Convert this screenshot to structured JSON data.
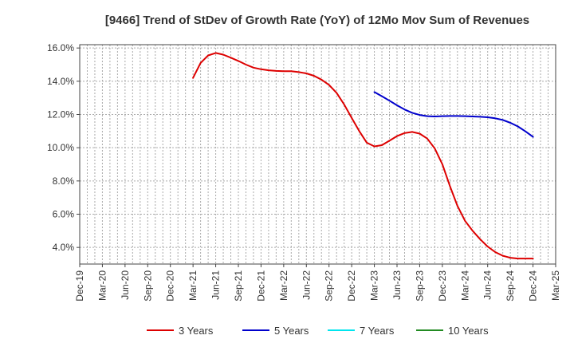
{
  "chart_data": {
    "type": "line",
    "title": "[9466]  Trend of StDev of Growth Rate (YoY) of 12Mo Mov Sum of Revenues",
    "xlabel": "",
    "ylabel": "",
    "x_ticks": [
      "Dec-19",
      "Mar-20",
      "Jun-20",
      "Sep-20",
      "Dec-20",
      "Mar-21",
      "Jun-21",
      "Sep-21",
      "Dec-21",
      "Mar-22",
      "Jun-22",
      "Sep-22",
      "Dec-22",
      "Mar-23",
      "Jun-23",
      "Sep-23",
      "Dec-23",
      "Mar-24",
      "Jun-24",
      "Sep-24",
      "Dec-24",
      "Mar-25"
    ],
    "y_ticks": [
      "4.0%",
      "6.0%",
      "8.0%",
      "10.0%",
      "12.0%",
      "14.0%",
      "16.0%"
    ],
    "y_tick_values": [
      4,
      6,
      8,
      10,
      12,
      14,
      16
    ],
    "ylim": [
      3.0,
      16.2
    ],
    "x_range_months": [
      0,
      63
    ],
    "grid": true,
    "legend_position": "bottom",
    "series": [
      {
        "name": "3 Years",
        "color": "#dd0000",
        "x_months": [
          15,
          16,
          17,
          18,
          19,
          20,
          21,
          22,
          23,
          24,
          25,
          26,
          27,
          28,
          29,
          30,
          31,
          32,
          33,
          34,
          35,
          36,
          37,
          38,
          39,
          40,
          41,
          42,
          43,
          44,
          45,
          46,
          47,
          48,
          49,
          50,
          51,
          52,
          53,
          54,
          55,
          56,
          57,
          58,
          59,
          60
        ],
        "values": [
          14.2,
          15.1,
          15.55,
          15.7,
          15.6,
          15.42,
          15.22,
          15.0,
          14.82,
          14.72,
          14.66,
          14.62,
          14.6,
          14.6,
          14.55,
          14.47,
          14.33,
          14.1,
          13.78,
          13.3,
          12.6,
          11.8,
          11.0,
          10.3,
          10.08,
          10.15,
          10.42,
          10.7,
          10.88,
          10.95,
          10.85,
          10.55,
          9.95,
          9.0,
          7.7,
          6.5,
          5.6,
          5.0,
          4.5,
          4.05,
          3.72,
          3.5,
          3.38,
          3.33,
          3.33,
          3.33
        ],
        "end_month": 60
      },
      {
        "name": "5 Years",
        "color": "#0000cc",
        "x_months": [
          39,
          40,
          41,
          42,
          43,
          44,
          45,
          46,
          47,
          48,
          49,
          50,
          51,
          52,
          53,
          54,
          55,
          56,
          57,
          58,
          59,
          60
        ],
        "values": [
          13.35,
          13.1,
          12.83,
          12.55,
          12.3,
          12.1,
          11.97,
          11.9,
          11.88,
          11.9,
          11.91,
          11.91,
          11.9,
          11.88,
          11.86,
          11.83,
          11.77,
          11.67,
          11.5,
          11.28,
          10.98,
          10.65
        ],
        "end_month": 60
      },
      {
        "name": "7 Years",
        "color": "#00e5ee",
        "x_months": [],
        "values": []
      },
      {
        "name": "10 Years",
        "color": "#228b22",
        "x_months": [],
        "values": []
      }
    ]
  }
}
